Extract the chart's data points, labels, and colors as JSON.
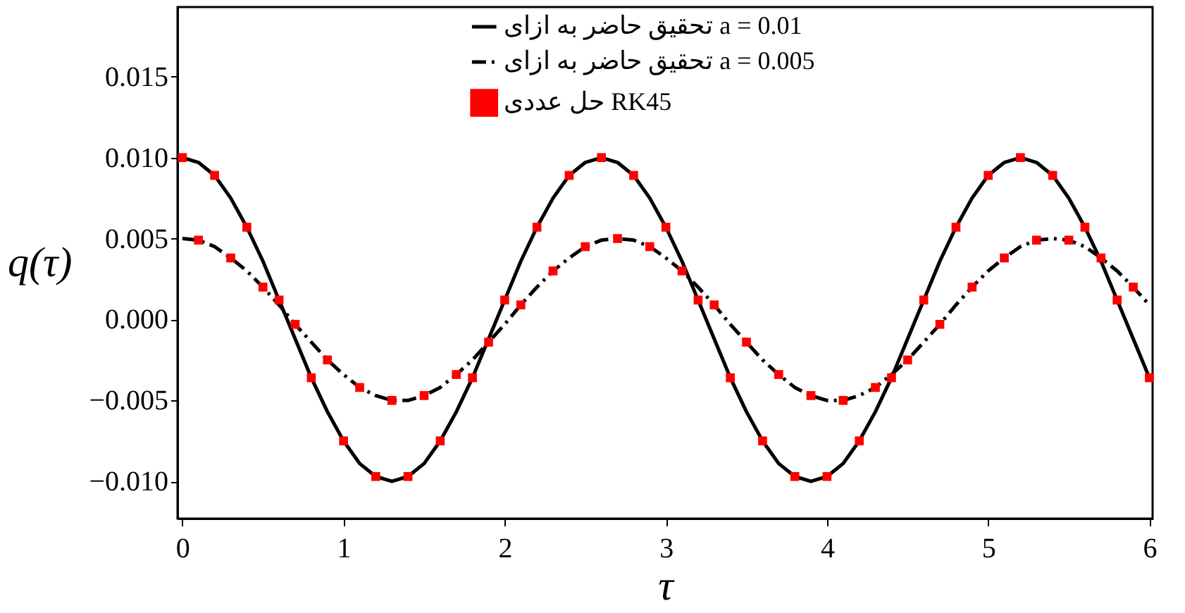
{
  "chart_data": {
    "type": "line",
    "xlabel": "τ",
    "ylabel": "q(τ)",
    "xlim": [
      -0.03,
      6.02
    ],
    "ylim": [
      -0.0123,
      0.0193
    ],
    "xticks": [
      0,
      1,
      2,
      3,
      4,
      5,
      6
    ],
    "yticks": [
      {
        "value": -0.01,
        "label": "−0.010"
      },
      {
        "value": -0.005,
        "label": "−0.005"
      },
      {
        "value": 0,
        "label": "0.000"
      },
      {
        "value": 0.005,
        "label": "0.005"
      },
      {
        "value": 0.01,
        "label": "0.010"
      },
      {
        "value": 0.015,
        "label": "0.015"
      }
    ],
    "x": [
      0,
      0.1,
      0.2,
      0.3,
      0.4,
      0.5,
      0.6,
      0.7,
      0.8,
      0.9,
      1,
      1.1,
      1.2,
      1.3,
      1.4,
      1.5,
      1.6,
      1.7,
      1.8,
      1.9,
      2,
      2.1,
      2.2,
      2.3,
      2.4,
      2.5,
      2.6,
      2.7,
      2.8,
      2.9,
      3,
      3.1,
      3.2,
      3.3,
      3.4,
      3.5,
      3.6,
      3.7,
      3.8,
      3.9,
      4,
      4.1,
      4.2,
      4.3,
      4.4,
      4.5,
      4.6,
      4.7,
      4.8,
      4.9,
      5,
      5.1,
      5.2,
      5.3,
      5.4,
      5.5,
      5.6,
      5.7,
      5.8,
      5.9,
      6
    ],
    "grid": false,
    "legend": "top right",
    "series": [
      {
        "name": "تحقیق حاضر به ازای a = 0.01",
        "color": "#000000",
        "line_style": "solid",
        "values": [
          0.01,
          0.0097,
          0.0089,
          0.0075,
          0.0057,
          0.0036,
          0.0012,
          -0.0012,
          -0.0036,
          -0.0057,
          -0.0075,
          -0.0089,
          -0.0097,
          -0.01,
          -0.0097,
          -0.0089,
          -0.0075,
          -0.0057,
          -0.0036,
          -0.0012,
          0.0012,
          0.0036,
          0.0057,
          0.0075,
          0.0089,
          0.0097,
          0.01,
          0.0097,
          0.0089,
          0.0075,
          0.0057,
          0.0036,
          0.0012,
          -0.0012,
          -0.0036,
          -0.0057,
          -0.0075,
          -0.0089,
          -0.0097,
          -0.01,
          -0.0097,
          -0.0089,
          -0.0075,
          -0.0057,
          -0.0036,
          -0.0012,
          0.0012,
          0.0036,
          0.0057,
          0.0075,
          0.0089,
          0.0097,
          0.01,
          0.0097,
          0.0089,
          0.0075,
          0.0057,
          0.0036,
          0.0012,
          -0.0012,
          -0.0036
        ]
      },
      {
        "name": "تحقیق حاضر به ازای a = 0.005",
        "color": "#000000",
        "line_style": "dashed",
        "values": [
          0.005,
          0.0049,
          0.0045,
          0.0038,
          0.003,
          0.002,
          0.0009,
          -0.0003,
          -0.0014,
          -0.0025,
          -0.0034,
          -0.0042,
          -0.0047,
          -0.005,
          -0.005,
          -0.0047,
          -0.0042,
          -0.0034,
          -0.0025,
          -0.0014,
          -0.0003,
          0.0009,
          0.002,
          0.003,
          0.0038,
          0.0045,
          0.0049,
          0.005,
          0.0049,
          0.0045,
          0.0038,
          0.003,
          0.002,
          0.0009,
          -0.0003,
          -0.0014,
          -0.0025,
          -0.0034,
          -0.0042,
          -0.0047,
          -0.005,
          -0.005,
          -0.0047,
          -0.0042,
          -0.0034,
          -0.0025,
          -0.0014,
          -0.0003,
          0.0009,
          0.002,
          0.003,
          0.0038,
          0.0045,
          0.0049,
          0.005,
          0.0049,
          0.0045,
          0.0038,
          0.003,
          0.002,
          0.0009
        ]
      },
      {
        "name": "حل عددی RK45",
        "color": "#ff0000",
        "type": "scatter",
        "marker": "square",
        "x": [
          0,
          0.2,
          0.4,
          0.6,
          0.8,
          1,
          1.2,
          1.4,
          1.6,
          1.8,
          2,
          2.2,
          2.4,
          2.6,
          2.8,
          3,
          3.2,
          3.4,
          3.6,
          3.8,
          4,
          4.2,
          4.4,
          4.6,
          4.8,
          5,
          5.2,
          5.4,
          5.6,
          5.8,
          6,
          0.1,
          0.3,
          0.5,
          0.7,
          0.9,
          1.1,
          1.3,
          1.5,
          1.7,
          1.9,
          2.1,
          2.3,
          2.5,
          2.7,
          2.9,
          3.1,
          3.3,
          3.5,
          3.7,
          3.9,
          4.1,
          4.3,
          4.5,
          4.7,
          4.9,
          5.1,
          5.3,
          5.5,
          5.7,
          5.9
        ],
        "values": [
          0.01,
          0.0089,
          0.0057,
          0.0012,
          -0.0036,
          -0.0075,
          -0.0097,
          -0.0097,
          -0.0075,
          -0.0036,
          0.0012,
          0.0057,
          0.0089,
          0.01,
          0.0089,
          0.0057,
          0.0012,
          -0.0036,
          -0.0075,
          -0.0097,
          -0.0097,
          -0.0075,
          -0.0036,
          0.0012,
          0.0057,
          0.0089,
          0.01,
          0.0089,
          0.0057,
          0.0012,
          -0.0036,
          0.0049,
          0.0038,
          0.002,
          -0.0003,
          -0.0025,
          -0.0042,
          -0.005,
          -0.0047,
          -0.0034,
          -0.0014,
          0.0009,
          0.003,
          0.0045,
          0.005,
          0.0045,
          0.003,
          0.0009,
          -0.0014,
          -0.0034,
          -0.0047,
          -0.005,
          -0.0042,
          -0.0025,
          -0.0003,
          0.002,
          0.0038,
          0.0049,
          0.0049,
          0.0038,
          0.002
        ]
      }
    ]
  }
}
